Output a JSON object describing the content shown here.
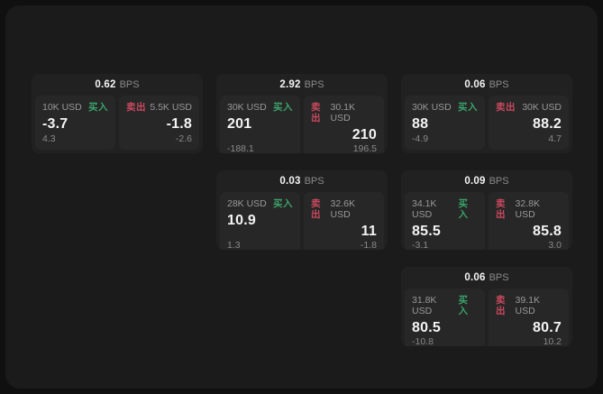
{
  "labels": {
    "buy": "买入",
    "sell": "卖出",
    "bps": "BPS"
  },
  "colors": {
    "page_bg": "#101010",
    "panel_bg": "#1b1b1b",
    "card_bg": "#212121",
    "tile_bg": "#272727",
    "buy_green": "#3aa36a",
    "sell_red": "#c9495e"
  },
  "cards": [
    {
      "row": 1,
      "col": 1,
      "spread": "0.62",
      "buy": {
        "notional": "10K USD",
        "price": "-3.7",
        "delta": "4.3"
      },
      "sell": {
        "notional": "5.5K USD",
        "price": "-1.8",
        "delta": "-2.6"
      }
    },
    {
      "row": 1,
      "col": 2,
      "spread": "2.92",
      "buy": {
        "notional": "30K USD",
        "price": "201",
        "delta": "-188.1"
      },
      "sell": {
        "notional": "30.1K USD",
        "price": "210",
        "delta": "196.5"
      }
    },
    {
      "row": 1,
      "col": 3,
      "spread": "0.06",
      "buy": {
        "notional": "30K USD",
        "price": "88",
        "delta": "-4.9"
      },
      "sell": {
        "notional": "30K USD",
        "price": "88.2",
        "delta": "4.7"
      }
    },
    {
      "row": 2,
      "col": 2,
      "spread": "0.03",
      "buy": {
        "notional": "28K USD",
        "price": "10.9",
        "delta": "1.3"
      },
      "sell": {
        "notional": "32.6K USD",
        "price": "11",
        "delta": "-1.8"
      }
    },
    {
      "row": 2,
      "col": 3,
      "spread": "0.09",
      "buy": {
        "notional": "34.1K USD",
        "price": "85.5",
        "delta": "-3.1"
      },
      "sell": {
        "notional": "32.8K USD",
        "price": "85.8",
        "delta": "3.0"
      }
    },
    {
      "row": 3,
      "col": 3,
      "spread": "0.06",
      "buy": {
        "notional": "31.8K USD",
        "price": "80.5",
        "delta": "-10.8"
      },
      "sell": {
        "notional": "39.1K USD",
        "price": "80.7",
        "delta": "10.2"
      }
    }
  ]
}
